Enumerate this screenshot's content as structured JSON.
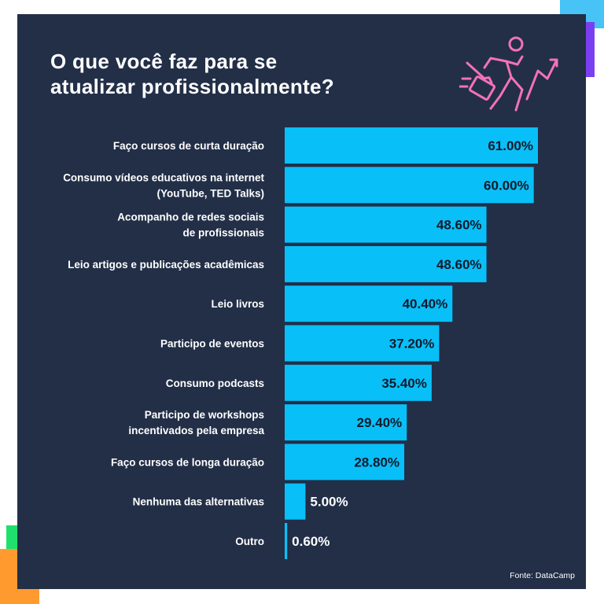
{
  "title_lines": [
    "O que você faz para se",
    "atualizar profissionalmente?"
  ],
  "source": "Fonte: DataCamp",
  "colors": {
    "background": "#222f47",
    "bar": "#09bff7",
    "text": "#ffffff",
    "value_in_bar": "#111a2b",
    "icon": "#f472b6"
  },
  "icon": "runner-with-briefcase-arrow-icon",
  "chart_data": {
    "type": "bar",
    "orientation": "horizontal",
    "title": "O que você faz para se atualizar profissionalmente?",
    "xlabel": "",
    "ylabel": "",
    "xlim": [
      0,
      61
    ],
    "value_suffix": "%",
    "categories": [
      [
        "Faço cursos de curta duração"
      ],
      [
        "Consumo vídeos educativos na internet",
        "(YouTube, TED Talks)"
      ],
      [
        "Acompanho de redes sociais",
        "de profissionais"
      ],
      [
        "Leio artigos e publicações acadêmicas"
      ],
      [
        "Leio livros"
      ],
      [
        "Participo de eventos"
      ],
      [
        "Consumo podcasts"
      ],
      [
        "Participo de workshops",
        "incentivados pela empresa"
      ],
      [
        "Faço cursos de longa duração"
      ],
      [
        "Nenhuma das alternativas"
      ],
      [
        "Outro"
      ]
    ],
    "values": [
      61.0,
      60.0,
      48.6,
      48.6,
      40.4,
      37.2,
      35.4,
      29.4,
      28.8,
      5.0,
      0.6
    ],
    "labels": [
      "61.00%",
      "60.00%",
      "48.60%",
      "48.60%",
      "40.40%",
      "37.20%",
      "35.40%",
      "29.40%",
      "28.80%",
      "5.00%",
      "0.60%"
    ]
  }
}
